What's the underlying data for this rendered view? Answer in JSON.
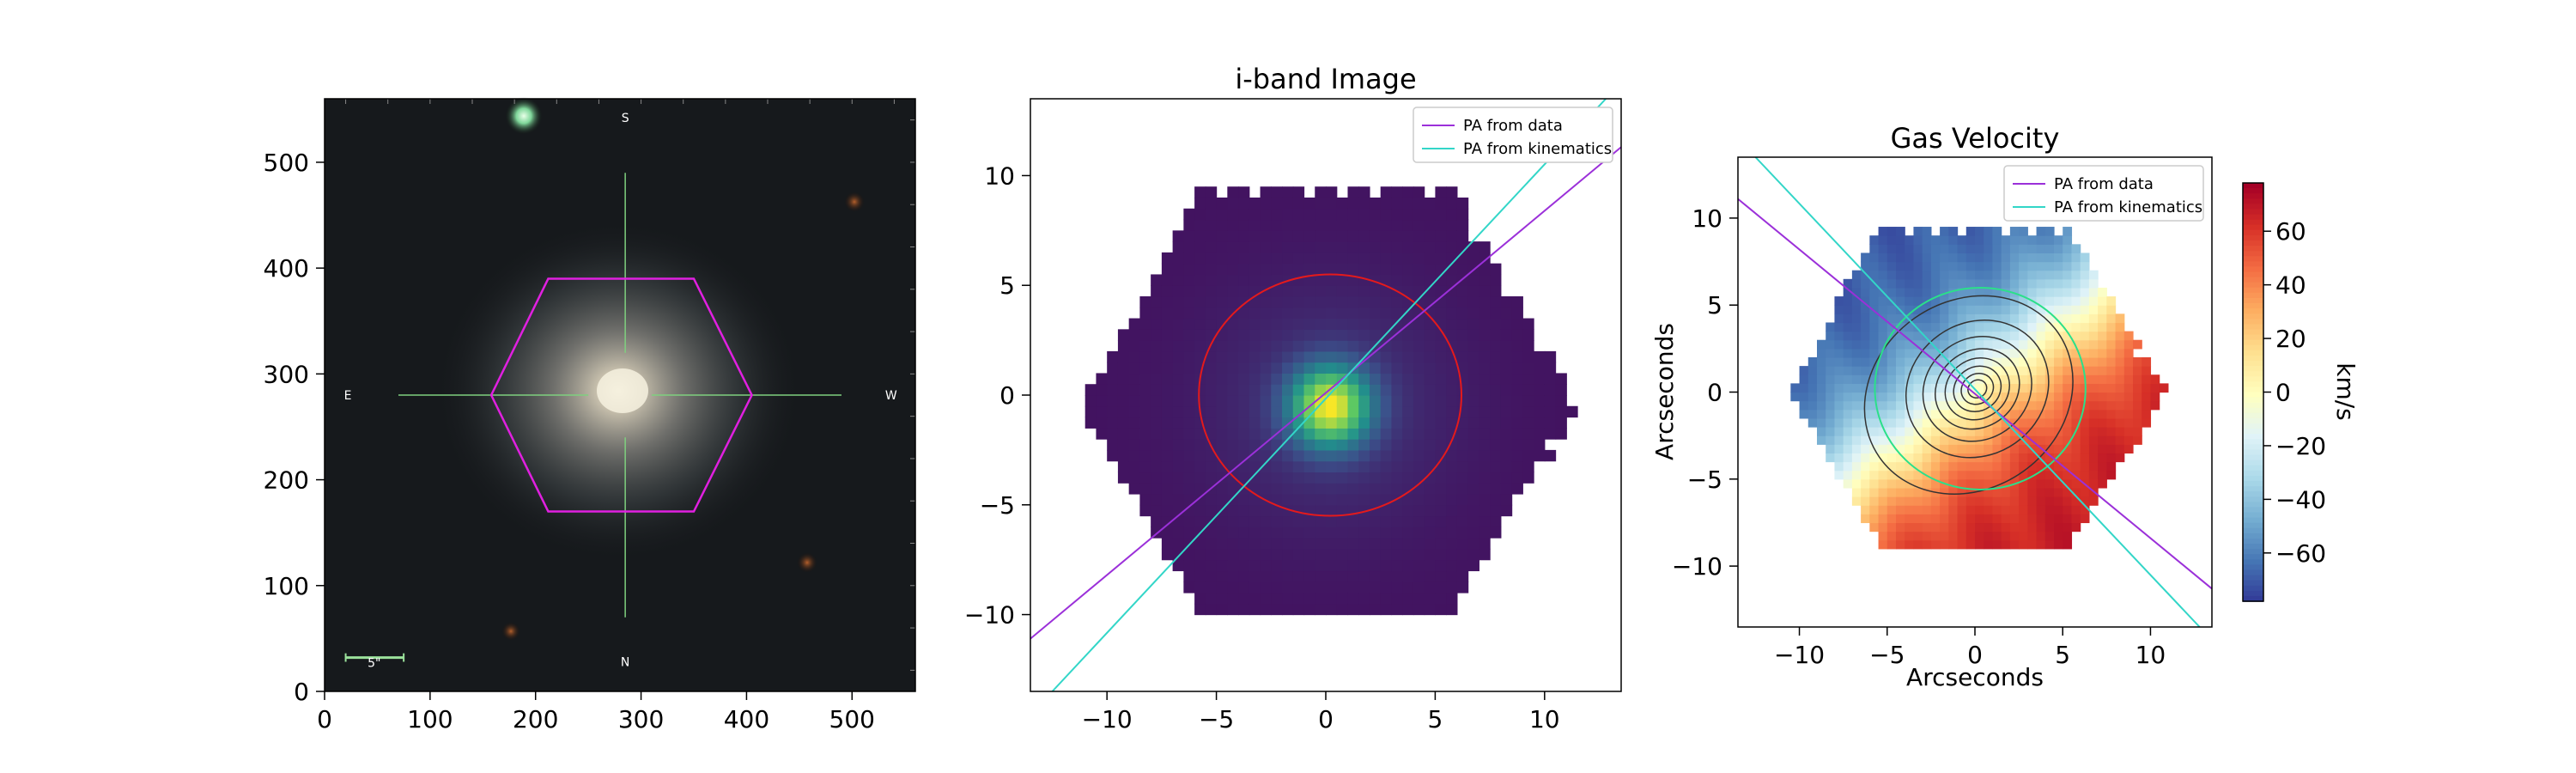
{
  "chart_data": [
    {
      "type": "image",
      "panel": "sdss-color-image",
      "title": "",
      "xlabel": "",
      "ylabel": "",
      "xlim": [
        0,
        560
      ],
      "ylim": [
        560,
        0
      ],
      "xticks": [
        0,
        100,
        200,
        300,
        400,
        500
      ],
      "yticks": [
        0,
        100,
        200,
        300,
        400,
        500
      ],
      "scale_bar_label": "5\"",
      "compass": {
        "north": "N",
        "south": "S",
        "east": "E",
        "west": "W"
      },
      "galaxy_center": [
        285,
        280
      ],
      "ifu_hexagon_vertices": [
        [
          212,
          170
        ],
        [
          350,
          170
        ],
        [
          405,
          280
        ],
        [
          350,
          390
        ],
        [
          212,
          390
        ],
        [
          158,
          280
        ]
      ],
      "colors": {
        "hexagon": "#e020e0",
        "crosshair": "#7fd07f",
        "scale_bar": "#9be29b"
      }
    },
    {
      "type": "heatmap",
      "panel": "i-band-image",
      "title": "i-band Image",
      "xlabel": "",
      "ylabel": "",
      "xlim": [
        -13.5,
        13.5
      ],
      "ylim": [
        13.5,
        -13.5
      ],
      "xticks": [
        -10,
        -5,
        0,
        5,
        10
      ],
      "yticks": [
        -10,
        -5,
        0,
        5,
        10
      ],
      "colormap": "viridis",
      "peak_center": [
        0.2,
        0.0
      ],
      "ellipse": {
        "center": [
          0.2,
          0.0
        ],
        "width": 12,
        "height": 11,
        "color": "#e41a1c"
      },
      "lines": [
        {
          "name": "PA from data",
          "color": "#9b30d9",
          "points": [
            [
              -13.5,
              -11.1
            ],
            [
              13.5,
              11.3
            ]
          ]
        },
        {
          "name": "PA from kinematics",
          "color": "#33d6c8",
          "points": [
            [
              -12.5,
              -13.5
            ],
            [
              12.8,
              13.5
            ]
          ]
        }
      ],
      "legend": {
        "location": "top-right",
        "entries": [
          "PA from data",
          "PA from kinematics"
        ]
      }
    },
    {
      "type": "heatmap",
      "panel": "gas-velocity",
      "title": "Gas Velocity",
      "xlabel": "Arcseconds",
      "ylabel": "Arcseconds",
      "xlim": [
        -13.5,
        13.5
      ],
      "ylim": [
        -13.5,
        13.5
      ],
      "xticks": [
        -10,
        -5,
        0,
        5,
        10
      ],
      "yticks": [
        -10,
        -5,
        0,
        5,
        10
      ],
      "colormap": "RdYlBu_r",
      "colorbar": {
        "label": "km/s",
        "min": -78,
        "max": 78,
        "ticks": [
          -60,
          -40,
          -20,
          0,
          20,
          40,
          60
        ]
      },
      "ellipse": {
        "center": [
          0.3,
          0.2
        ],
        "width": 12,
        "height": 11.6,
        "color": "#2be08a"
      },
      "contour_center": [
        0.3,
        0.3
      ],
      "lines": [
        {
          "name": "PA from data",
          "color": "#9b30d9",
          "points": [
            [
              -13.5,
              11.1
            ],
            [
              13.5,
              -11.3
            ]
          ]
        },
        {
          "name": "PA from kinematics",
          "color": "#33d6c8",
          "points": [
            [
              -12.5,
              13.5
            ],
            [
              12.8,
              -13.5
            ]
          ]
        }
      ],
      "legend": {
        "location": "top-right",
        "entries": [
          "PA from data",
          "PA from kinematics"
        ]
      }
    }
  ]
}
